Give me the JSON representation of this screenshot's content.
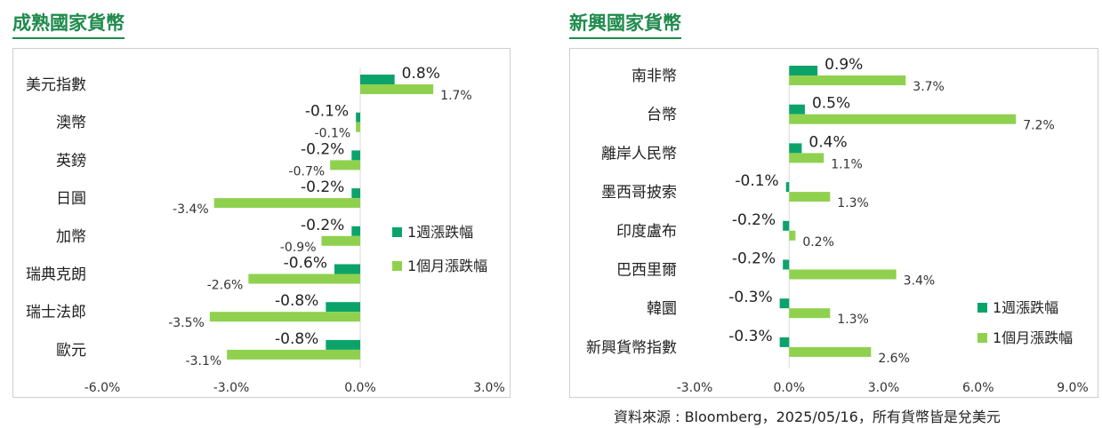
{
  "source_note": "資料來源 : Bloomberg，2025/05/16，所有貨幣皆是兌美元",
  "colors": {
    "weekly": "#0ca36b",
    "monthly": "#8fd14f",
    "title": "#1f8a4c"
  },
  "chart_data": [
    {
      "type": "bar",
      "orientation": "horizontal",
      "title": "成熟國家貨幣",
      "categories": [
        "美元指數",
        "澳幣",
        "英鎊",
        "日圓",
        "加幣",
        "瑞典克朗",
        "瑞士法郎",
        "歐元"
      ],
      "series": [
        {
          "name": "1週漲跌幅",
          "values": [
            0.8,
            -0.1,
            -0.2,
            -0.2,
            -0.2,
            -0.6,
            -0.8,
            -0.8
          ],
          "labels": [
            "0.8%",
            "-0.1%",
            "-0.2%",
            "-0.2%",
            "-0.2%",
            "-0.6%",
            "-0.8%",
            "-0.8%"
          ]
        },
        {
          "name": "1個月漲跌幅",
          "values": [
            1.7,
            -0.1,
            -0.7,
            -3.4,
            -0.9,
            -2.6,
            -3.5,
            -3.1
          ],
          "labels": [
            "1.7%",
            "-0.1%",
            "-0.7%",
            "-3.4%",
            "-0.9%",
            "-2.6%",
            "-3.5%",
            "-3.1%"
          ]
        }
      ],
      "xlim": [
        -6,
        3
      ],
      "xticks": [
        "-6.0%",
        "-3.0%",
        "0.0%",
        "3.0%"
      ],
      "legend": "right"
    },
    {
      "type": "bar",
      "orientation": "horizontal",
      "title": "新興國家貨幣",
      "categories": [
        "南非幣",
        "台幣",
        "離岸人民幣",
        "墨西哥披索",
        "印度盧布",
        "巴西里爾",
        "韓圜",
        "新興貨幣指數"
      ],
      "series": [
        {
          "name": "1週漲跌幅",
          "values": [
            0.9,
            0.5,
            0.4,
            -0.1,
            -0.2,
            -0.2,
            -0.3,
            -0.3
          ],
          "labels": [
            "0.9%",
            "0.5%",
            "0.4%",
            "-0.1%",
            "-0.2%",
            "-0.2%",
            "-0.3%",
            "-0.3%"
          ]
        },
        {
          "name": "1個月漲跌幅",
          "values": [
            3.7,
            7.2,
            1.1,
            1.3,
            0.2,
            3.4,
            1.3,
            2.6
          ],
          "labels": [
            "3.7%",
            "7.2%",
            "1.1%",
            "1.3%",
            "0.2%",
            "3.4%",
            "1.3%",
            "2.6%"
          ]
        }
      ],
      "xlim": [
        -3,
        9
      ],
      "xticks": [
        "-3.0%",
        "0.0%",
        "3.0%",
        "6.0%",
        "9.0%"
      ],
      "legend": "bottom-right"
    }
  ]
}
